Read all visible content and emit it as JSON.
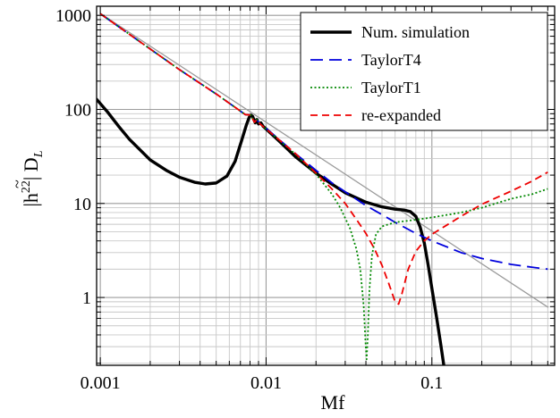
{
  "chart_data": {
    "type": "line",
    "xscale": "log",
    "yscale": "log",
    "xlim": [
      0.00095,
      0.55
    ],
    "ylim": [
      0.19,
      1250
    ],
    "xlabel": "Mf",
    "ylabel": "|h̃²²| D_L",
    "ylabel_parts": {
      "main": "|h",
      "tilde": "~",
      "sup": "22",
      "tail": "| D",
      "sub": "L"
    },
    "grid": true,
    "legend_position": "top-right",
    "x_ticks": [
      {
        "value": 0.001,
        "label": "0.001"
      },
      {
        "value": 0.01,
        "label": "0.01"
      },
      {
        "value": 0.1,
        "label": "0.1"
      }
    ],
    "y_ticks": [
      {
        "value": 1,
        "label": "1"
      },
      {
        "value": 10,
        "label": "10"
      },
      {
        "value": 100,
        "label": "100"
      },
      {
        "value": 1000,
        "label": "1000"
      }
    ],
    "series": [
      {
        "name": "",
        "role": "reference power law",
        "color": "#9a9a9a",
        "dash": "solid",
        "width": 1.3,
        "points": [
          [
            0.001,
            1050
          ],
          [
            0.5,
            0.79
          ]
        ]
      },
      {
        "name": "Num. simulation",
        "color": "#000000",
        "dash": "solid",
        "width": 3.4,
        "points": [
          [
            0.00095,
            128
          ],
          [
            0.0011,
            95
          ],
          [
            0.0013,
            65
          ],
          [
            0.0015,
            48
          ],
          [
            0.002,
            29
          ],
          [
            0.0025,
            22.5
          ],
          [
            0.003,
            19
          ],
          [
            0.0037,
            16.8
          ],
          [
            0.0043,
            16.1
          ],
          [
            0.005,
            16.5
          ],
          [
            0.0058,
            19.5
          ],
          [
            0.0065,
            28
          ],
          [
            0.0071,
            46
          ],
          [
            0.0076,
            68
          ],
          [
            0.0079,
            82
          ],
          [
            0.0081,
            87
          ],
          [
            0.0083,
            84
          ],
          [
            0.0086,
            72
          ],
          [
            0.0088,
            78
          ],
          [
            0.009,
            70
          ],
          [
            0.0093,
            72
          ],
          [
            0.0096,
            66
          ],
          [
            0.01,
            62
          ],
          [
            0.012,
            46
          ],
          [
            0.015,
            31.5
          ],
          [
            0.02,
            21
          ],
          [
            0.025,
            16
          ],
          [
            0.03,
            13
          ],
          [
            0.04,
            10.3
          ],
          [
            0.05,
            9.2
          ],
          [
            0.06,
            8.7
          ],
          [
            0.068,
            8.5
          ],
          [
            0.074,
            8.2
          ],
          [
            0.08,
            7.3
          ],
          [
            0.085,
            5.6
          ],
          [
            0.09,
            3.8
          ],
          [
            0.095,
            2.2
          ],
          [
            0.1,
            1.25
          ],
          [
            0.107,
            0.6
          ],
          [
            0.113,
            0.32
          ],
          [
            0.118,
            0.19
          ]
        ]
      },
      {
        "name": "TaylorT4",
        "color": "#0000dd",
        "dash": "14,7",
        "width": 1.8,
        "points": [
          [
            0.001,
            1040
          ],
          [
            0.003,
            265
          ],
          [
            0.005,
            146
          ],
          [
            0.0075,
            88
          ],
          [
            0.0081,
            87
          ],
          [
            0.0085,
            73
          ],
          [
            0.0088,
            78
          ],
          [
            0.0092,
            70
          ],
          [
            0.01,
            63
          ],
          [
            0.015,
            34
          ],
          [
            0.02,
            22.5
          ],
          [
            0.025,
            16.5
          ],
          [
            0.03,
            13.3
          ],
          [
            0.04,
            9.5
          ],
          [
            0.05,
            7.6
          ],
          [
            0.06,
            6.3
          ],
          [
            0.08,
            4.8
          ],
          [
            0.1,
            4.0
          ],
          [
            0.15,
            3.0
          ],
          [
            0.2,
            2.6
          ],
          [
            0.3,
            2.25
          ],
          [
            0.4,
            2.1
          ],
          [
            0.5,
            2.0
          ]
        ]
      },
      {
        "name": "TaylorT1",
        "color": "#008800",
        "dash": "2,2.5",
        "width": 1.8,
        "points": [
          [
            0.001,
            1040
          ],
          [
            0.003,
            265
          ],
          [
            0.005,
            146
          ],
          [
            0.0075,
            88
          ],
          [
            0.0081,
            87
          ],
          [
            0.0085,
            73
          ],
          [
            0.0088,
            78
          ],
          [
            0.0092,
            70
          ],
          [
            0.01,
            62
          ],
          [
            0.015,
            33.5
          ],
          [
            0.02,
            20.5
          ],
          [
            0.025,
            12.5
          ],
          [
            0.028,
            9
          ],
          [
            0.032,
            5.5
          ],
          [
            0.035,
            3.3
          ],
          [
            0.037,
            2.0
          ],
          [
            0.0388,
            0.8
          ],
          [
            0.0398,
            0.33
          ],
          [
            0.0404,
            0.22
          ],
          [
            0.0411,
            0.4
          ],
          [
            0.042,
            1.2
          ],
          [
            0.0435,
            2.8
          ],
          [
            0.046,
            4.7
          ],
          [
            0.05,
            5.7
          ],
          [
            0.06,
            6.3
          ],
          [
            0.08,
            6.7
          ],
          [
            0.1,
            7.1
          ],
          [
            0.15,
            8.0
          ],
          [
            0.2,
            9.0
          ],
          [
            0.3,
            11.2
          ],
          [
            0.4,
            12.5
          ],
          [
            0.5,
            14.3
          ]
        ]
      },
      {
        "name": "re-expanded",
        "color": "#ee0000",
        "dash": "8,5",
        "width": 1.8,
        "points": [
          [
            0.001,
            1040
          ],
          [
            0.003,
            265
          ],
          [
            0.005,
            146
          ],
          [
            0.0075,
            88
          ],
          [
            0.0081,
            87
          ],
          [
            0.0085,
            73
          ],
          [
            0.0088,
            78
          ],
          [
            0.0092,
            70
          ],
          [
            0.01,
            62
          ],
          [
            0.015,
            34
          ],
          [
            0.02,
            21
          ],
          [
            0.025,
            14.2
          ],
          [
            0.03,
            10
          ],
          [
            0.035,
            6.8
          ],
          [
            0.04,
            4.8
          ],
          [
            0.045,
            3.3
          ],
          [
            0.05,
            2.2
          ],
          [
            0.055,
            1.4
          ],
          [
            0.06,
            0.9
          ],
          [
            0.063,
            0.85
          ],
          [
            0.066,
            1.1
          ],
          [
            0.072,
            2.0
          ],
          [
            0.08,
            3.1
          ],
          [
            0.09,
            4.0
          ],
          [
            0.1,
            4.7
          ],
          [
            0.15,
            7.3
          ],
          [
            0.2,
            9.8
          ],
          [
            0.3,
            13.5
          ],
          [
            0.4,
            17.2
          ],
          [
            0.5,
            21.5
          ]
        ]
      }
    ]
  }
}
